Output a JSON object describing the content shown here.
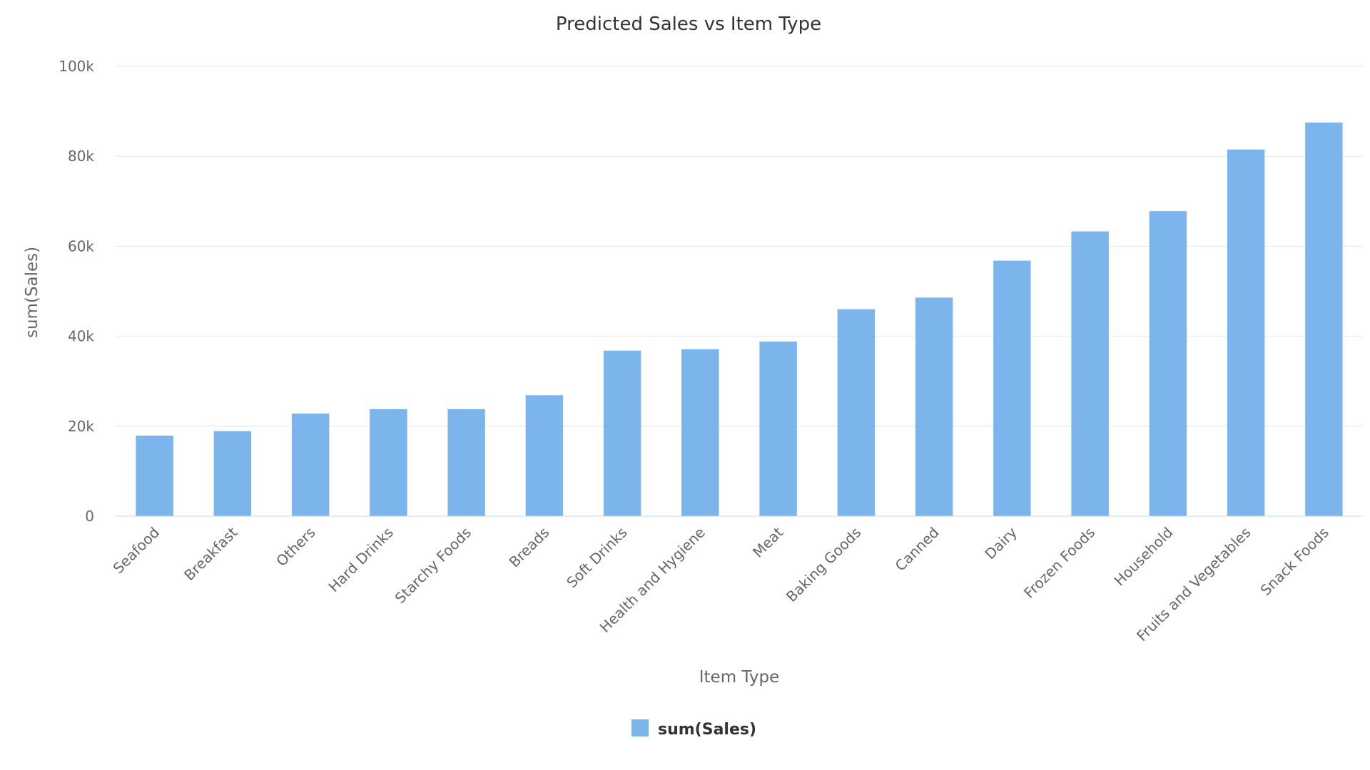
{
  "chart_data": {
    "type": "bar",
    "title": "Predicted Sales vs Item Type",
    "xlabel": "Item Type",
    "ylabel": "sum(Sales)",
    "ylim": [
      0,
      100000
    ],
    "yticks": [
      0,
      20000,
      40000,
      60000,
      80000,
      100000
    ],
    "ytick_labels": [
      "0",
      "20k",
      "40k",
      "60k",
      "80k",
      "100k"
    ],
    "grid": true,
    "legend_position": "bottom",
    "categories": [
      "Seafood",
      "Breakfast",
      "Others",
      "Hard Drinks",
      "Starchy Foods",
      "Breads",
      "Soft Drinks",
      "Health and Hygiene",
      "Meat",
      "Baking Goods",
      "Canned",
      "Dairy",
      "Frozen Foods",
      "Household",
      "Fruits and Vegetables",
      "Snack Foods"
    ],
    "series": [
      {
        "name": "sum(Sales)",
        "color": "#7cb5ec",
        "values": [
          17900,
          18900,
          22800,
          23800,
          23800,
          26900,
          36800,
          37100,
          38800,
          46000,
          48600,
          56800,
          63300,
          67800,
          81500,
          87500
        ]
      }
    ]
  }
}
